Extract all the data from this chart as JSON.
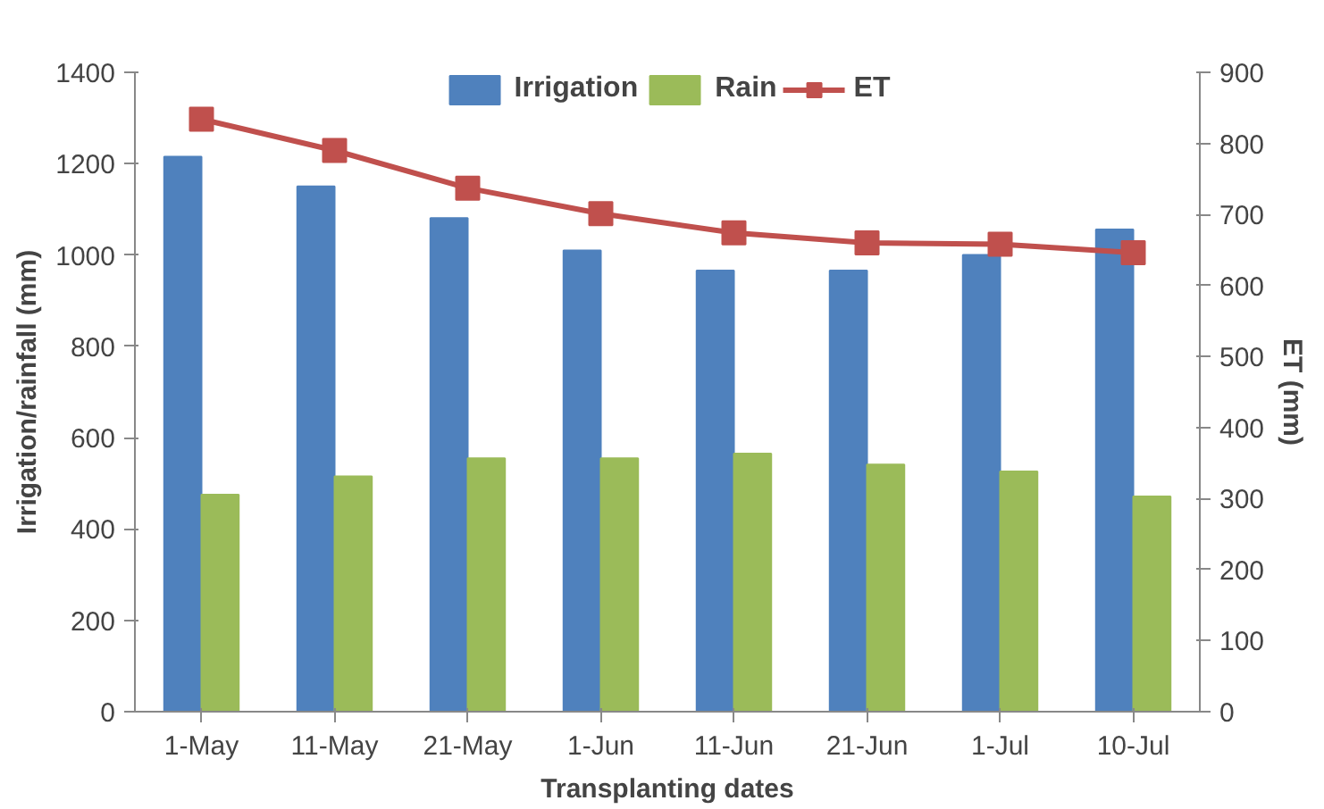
{
  "chart_data": {
    "type": "bar",
    "xlabel": "Transplanting dates",
    "ylabel": "Irrigation/rainfall (mm)",
    "y2label": "ET (mm)",
    "categories": [
      "1-May",
      "11-May",
      "21-May",
      "1-Jun",
      "11-Jun",
      "21-Jun",
      "1-Jul",
      "10-Jul"
    ],
    "series": [
      {
        "name": "Irrigation",
        "color": "#4f81bd",
        "values": [
          1215,
          1150,
          1081,
          1010,
          966,
          966,
          1000,
          1056
        ]
      },
      {
        "name": "Rain",
        "color": "#9bbb59",
        "values": [
          475,
          515,
          555,
          555,
          565,
          541,
          526,
          471
        ]
      },
      {
        "name": "ET",
        "color": "#c0504d",
        "type": "line",
        "axis": "y2",
        "marker": "square",
        "values": [
          834,
          790,
          737,
          701,
          674,
          660,
          658,
          646
        ]
      }
    ],
    "ylim": [
      0,
      1400
    ],
    "yticks": [
      0,
      200,
      400,
      600,
      800,
      1000,
      1200,
      1400
    ],
    "y2lim": [
      0,
      900
    ],
    "y2ticks": [
      0,
      100,
      200,
      300,
      400,
      500,
      600,
      700,
      800,
      900
    ],
    "grid": false,
    "legend": "top"
  }
}
